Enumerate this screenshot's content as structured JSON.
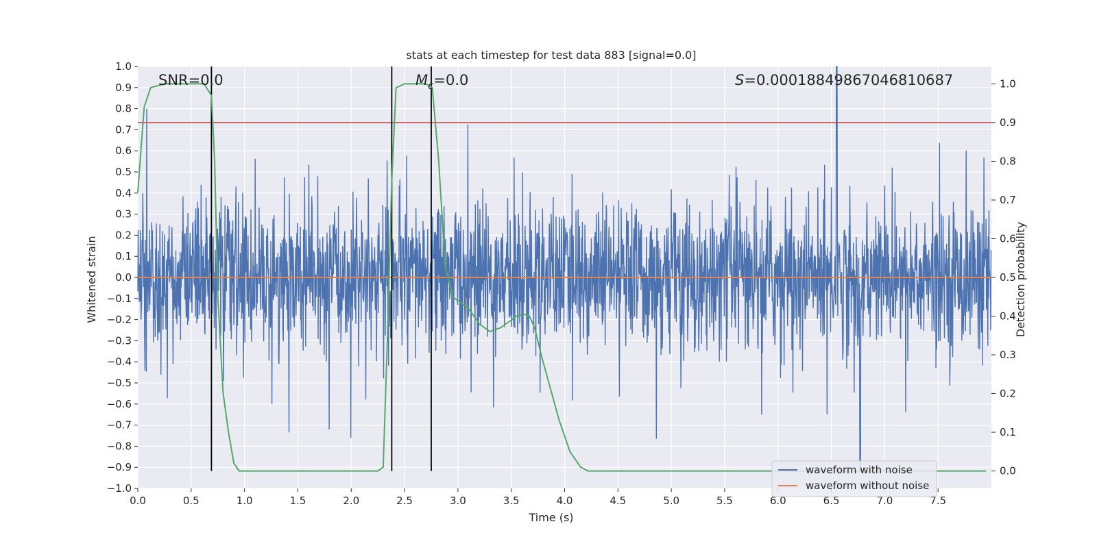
{
  "chart_data": {
    "type": "line",
    "title": "stats at each timestep for test data 883 [signal=0.0]",
    "xlabel": "Time (s)",
    "ylabel": "Whitened strain",
    "y2label": "Detection probability",
    "xlim": [
      0.0,
      8.0
    ],
    "ylim": [
      -1.0,
      1.0
    ],
    "y2lim": [
      -0.045,
      1.045
    ],
    "xticks": [
      "0.0",
      "0.5",
      "1.0",
      "1.5",
      "2.0",
      "2.5",
      "3.0",
      "3.5",
      "4.0",
      "4.5",
      "5.0",
      "5.5",
      "6.0",
      "6.5",
      "7.0",
      "7.5"
    ],
    "yticks": [
      "1.0",
      "0.9",
      "0.8",
      "0.7",
      "0.6",
      "0.5",
      "0.4",
      "0.3",
      "0.2",
      "0.1",
      "0.0",
      "−0.1",
      "−0.2",
      "−0.3",
      "−0.4",
      "−0.5",
      "−0.6",
      "−0.7",
      "−0.8",
      "−0.9",
      "−1.0"
    ],
    "y2ticks": [
      "1.0",
      "0.9",
      "0.8",
      "0.7",
      "0.6",
      "0.5",
      "0.4",
      "0.3",
      "0.2",
      "0.1",
      "0.0"
    ],
    "annotations": {
      "snr": "SNR=0.0",
      "mc_symbol": "M",
      "mc_sub": "c",
      "mc_value": "=0.0",
      "s_symbol": "S",
      "s_value": "=0.00018849867046810687"
    },
    "threshold_y2": 0.9,
    "vertical_lines_x": [
      0.69,
      2.38,
      2.75
    ],
    "detection_probability": {
      "name": "detection probability",
      "x": [
        0.0,
        0.06,
        0.12,
        0.25,
        0.45,
        0.62,
        0.69,
        0.72,
        0.75,
        0.8,
        0.85,
        0.9,
        0.95,
        1.2,
        1.6,
        2.0,
        2.25,
        2.3,
        2.34,
        2.38,
        2.42,
        2.5,
        2.6,
        2.7,
        2.76,
        2.82,
        2.88,
        2.95,
        3.1,
        3.2,
        3.3,
        3.4,
        3.55,
        3.62,
        3.67,
        3.72,
        3.78,
        3.85,
        3.95,
        4.05,
        4.15,
        4.22,
        4.3,
        5.0,
        6.0,
        7.0,
        7.95
      ],
      "y": [
        0.72,
        0.94,
        0.99,
        1.0,
        1.0,
        1.0,
        0.97,
        0.8,
        0.45,
        0.2,
        0.1,
        0.02,
        0.0,
        0.0,
        0.0,
        0.0,
        0.0,
        0.01,
        0.35,
        0.75,
        0.99,
        1.0,
        1.0,
        1.0,
        0.99,
        0.8,
        0.53,
        0.45,
        0.42,
        0.38,
        0.36,
        0.37,
        0.4,
        0.405,
        0.4,
        0.37,
        0.3,
        0.23,
        0.13,
        0.05,
        0.01,
        0.0,
        0.0,
        0.0,
        0.0,
        0.0,
        0.0
      ]
    },
    "series": [
      {
        "name": "waveform with noise",
        "color": "#4c72b0",
        "display": "dense random noise, mostly within ±0.45, sharp spikes up to 1.0 near t=6.55 and down to -0.92 near t=6.77"
      },
      {
        "name": "waveform without noise",
        "color": "#dd8452",
        "constant_value": 0.0
      }
    ],
    "legend": {
      "position": "lower-right",
      "entries": [
        "waveform with noise",
        "waveform without noise"
      ]
    },
    "colors": {
      "axes_bg": "#eaeaf2",
      "grid": "#ffffff",
      "noise": "#4c72b0",
      "clean": "#dd8452",
      "probability": "#55a868",
      "threshold": "#c44e52",
      "vlines": "#000000"
    },
    "noise_seed": 883
  }
}
